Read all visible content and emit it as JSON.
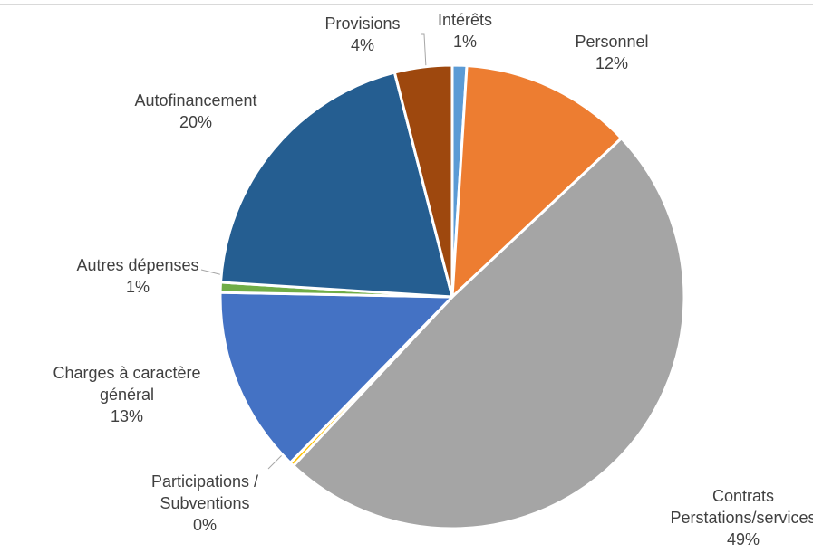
{
  "chart_data": {
    "type": "pie",
    "title": "",
    "slices": [
      {
        "name": "Intérêts",
        "value": 1,
        "label_lines": [
          "Intérêts"
        ],
        "pct_label": "1%",
        "color": "#5b9bd5"
      },
      {
        "name": "Personnel",
        "value": 12,
        "label_lines": [
          "Personnel"
        ],
        "pct_label": "12%",
        "color": "#ed7d31"
      },
      {
        "name": "Contrats Perstations/services",
        "value": 49,
        "label_lines": [
          "Contrats",
          "Perstations/services"
        ],
        "pct_label": "49%",
        "color": "#a5a5a5"
      },
      {
        "name": "Participations / Subventions",
        "value": 0.3,
        "label_lines": [
          "Participations /",
          "Subventions"
        ],
        "pct_label": "0%",
        "color": "#ffc000"
      },
      {
        "name": "Charges à caractère général",
        "value": 13,
        "label_lines": [
          "Charges à caractère",
          "général"
        ],
        "pct_label": "13%",
        "color": "#4472c4"
      },
      {
        "name": "Autres dépenses",
        "value": 0.7,
        "label_lines": [
          "Autres dépenses"
        ],
        "pct_label": "1%",
        "color": "#70ad47"
      },
      {
        "name": "Autofinancement",
        "value": 20,
        "label_lines": [
          "Autofinancement"
        ],
        "pct_label": "20%",
        "color": "#255e91"
      },
      {
        "name": "Provisions",
        "value": 4,
        "label_lines": [
          "Provisions"
        ],
        "pct_label": "4%",
        "color": "#9e480e"
      }
    ],
    "legend": "none"
  }
}
